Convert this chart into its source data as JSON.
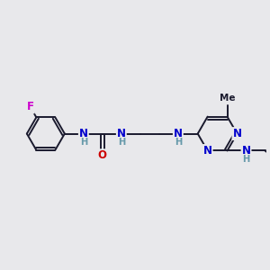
{
  "background_color": "#e8e8eb",
  "bond_color": "#1a1a2e",
  "atom_colors": {
    "N": "#0000cc",
    "O": "#cc0000",
    "F": "#cc00cc",
    "C": "#1a1a2e",
    "H": "#6699aa"
  },
  "figsize": [
    3.0,
    3.0
  ],
  "dpi": 100,
  "xlim": [
    0,
    10
  ],
  "ylim": [
    0,
    10
  ]
}
